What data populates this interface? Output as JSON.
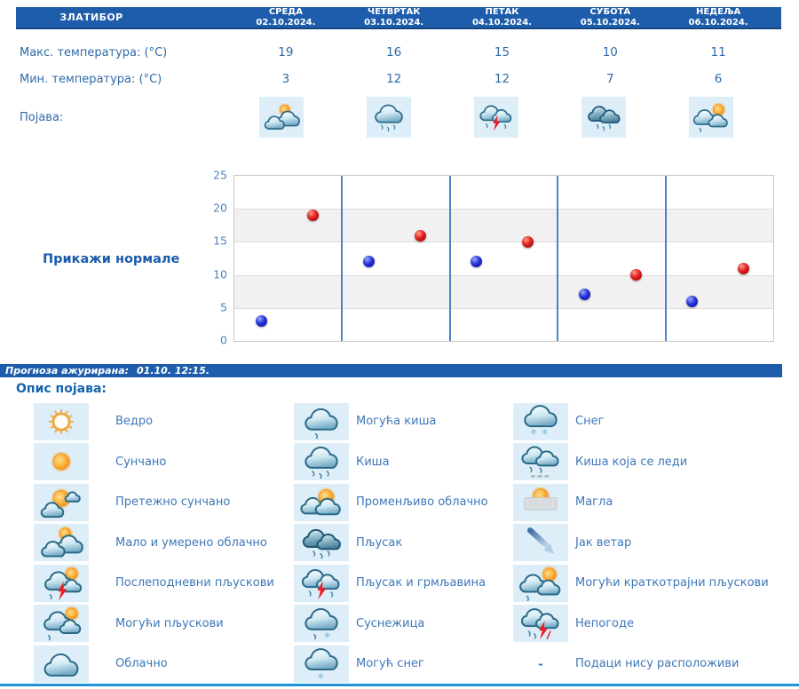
{
  "table": {
    "location": "ЗЛАТИБОР",
    "max_temp_label": "Макс. температура: (°C)",
    "min_temp_label": "Мин. температура: (°C)",
    "phenomenon_label": "Појава:"
  },
  "days": [
    {
      "name": "СРЕДА",
      "date": "02.10.2024.",
      "max": "19",
      "min": "3",
      "icon": "malo-umereno-oblacno"
    },
    {
      "name": "ЧЕТВРТАК",
      "date": "03.10.2024.",
      "max": "16",
      "min": "12",
      "icon": "kisa"
    },
    {
      "name": "ПЕТАК",
      "date": "04.10.2024.",
      "max": "15",
      "min": "12",
      "icon": "pljusak-i-grmljavina"
    },
    {
      "name": "СУБОТА",
      "date": "05.10.2024.",
      "max": "10",
      "min": "7",
      "icon": "pljusak"
    },
    {
      "name": "НЕДЕЉА",
      "date": "06.10.2024.",
      "max": "11",
      "min": "6",
      "icon": "moguci-kratkotrajni-pljuskovi"
    }
  ],
  "chart": {
    "show_normals_label": "Прикажи нормале"
  },
  "chart_data": {
    "type": "scatter",
    "title": "",
    "xlabel": "",
    "ylabel": "",
    "categories": [
      "СРЕДА 02.10.2024.",
      "ЧЕТВРТАК 03.10.2024.",
      "ПЕТАК 04.10.2024.",
      "СУБОТА 05.10.2024.",
      "НЕДЕЉА 06.10.2024."
    ],
    "series": [
      {
        "name": "Мин. температура (°C)",
        "color": "#1f27cf",
        "values": [
          3,
          12,
          12,
          7,
          6
        ]
      },
      {
        "name": "Макс. температура (°C)",
        "color": "#d42020",
        "values": [
          19,
          16,
          15,
          10,
          11
        ]
      }
    ],
    "ylim": [
      0,
      25
    ],
    "yticks": [
      0,
      5,
      10,
      15,
      20,
      25
    ],
    "grid": true,
    "bands": "alternate-gray-every-5",
    "legend_position": "none"
  },
  "update_bar": {
    "prefix": "Прогноза ажурирана:",
    "time": "01.10. 12:15."
  },
  "legend": {
    "title": "Опис појава:",
    "columns": [
      [
        {
          "icon": "vedro",
          "label": "Ведро"
        },
        {
          "icon": "suncano",
          "label": "Сунчано"
        },
        {
          "icon": "pretezno-suncano",
          "label": "Претежно сунчано"
        },
        {
          "icon": "malo-umereno-oblacno",
          "label": "Мало и умерено облачно"
        },
        {
          "icon": "poslepodnevni-pljuskovi",
          "label": "Послеподневни пљускови"
        },
        {
          "icon": "moguci-pljuskovi",
          "label": "Могући пљускови"
        },
        {
          "icon": "oblacno",
          "label": "Облачно"
        }
      ],
      [
        {
          "icon": "moguca-kisa",
          "label": "Могућа киша"
        },
        {
          "icon": "kisa",
          "label": "Киша"
        },
        {
          "icon": "promenljivo-oblacno",
          "label": "Променљиво облачно"
        },
        {
          "icon": "pljusak",
          "label": "Пљусак"
        },
        {
          "icon": "pljusak-i-grmljavina",
          "label": "Пљусак и грмљавина"
        },
        {
          "icon": "susnezica",
          "label": "Суснежица"
        },
        {
          "icon": "moguc-sneg",
          "label": "Могућ снег"
        }
      ],
      [
        {
          "icon": "sneg",
          "label": "Снег"
        },
        {
          "icon": "kisa-koja-se-ledi",
          "label": "Киша која се леди"
        },
        {
          "icon": "magla",
          "label": "Магла"
        },
        {
          "icon": "jak-vetar",
          "label": "Јак ветар"
        },
        {
          "icon": "moguci-kratkotrajni-pljuskovi",
          "label": "Могући краткотрајни пљускови"
        },
        {
          "icon": "nepogode",
          "label": "Непогоде"
        },
        {
          "icon": "dash",
          "label": "Подаци нису расположиви"
        }
      ]
    ]
  },
  "colors": {
    "header_bg": "#1e5dab",
    "header_border": "#16457e",
    "table_text": "#2f6ba8",
    "link_text": "#1a5dab",
    "legend_title": "#1565ae",
    "legend_text": "#3d77b9",
    "icon_box_bg": "#ddeef9",
    "bottom_line": "#2094d4",
    "separator": "#4d82c4",
    "ytick": "#4d84bb",
    "band": "#f1f1f1",
    "grid": "#dcdcdc",
    "plot_border": "#c9c9c9"
  }
}
